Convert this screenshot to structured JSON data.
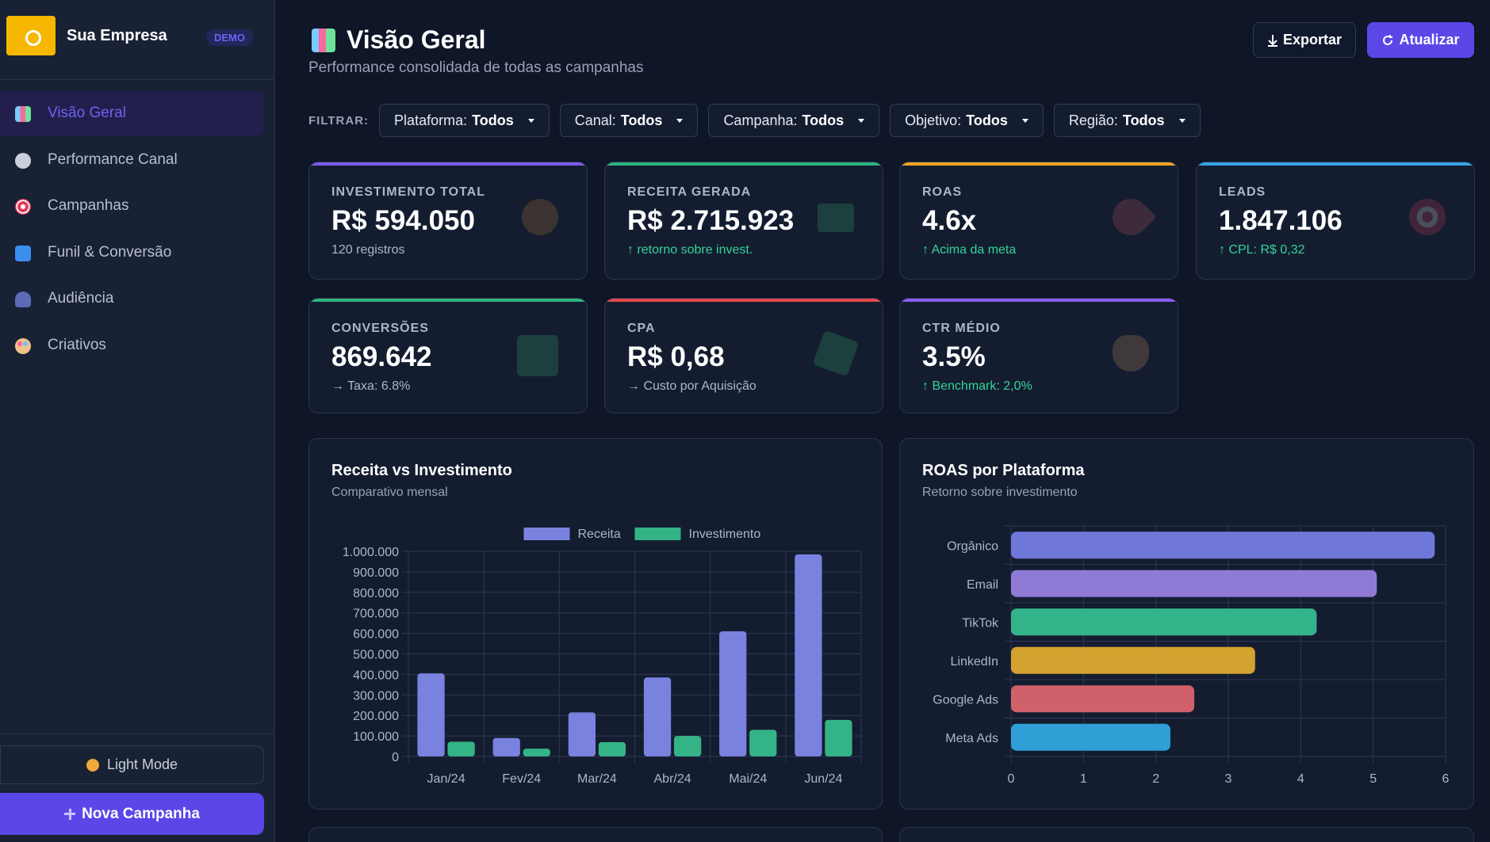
{
  "sidebar": {
    "brand": "Sua Empresa",
    "badge": "DEMO",
    "nav": [
      "Visão Geral",
      "Performance Canal",
      "Campanhas",
      "Funil & Conversão",
      "Audiência",
      "Criativos"
    ],
    "light_mode": "Light Mode",
    "new_campaign": "Nova Campanha"
  },
  "header": {
    "title": "Visão Geral",
    "subtitle": "Performance consolidada de todas as campanhas",
    "export": "Exportar",
    "refresh": "Atualizar"
  },
  "filters": {
    "label": "FILTRAR:",
    "items": [
      {
        "name": "Plataforma:",
        "value": "Todos"
      },
      {
        "name": "Canal:",
        "value": "Todos"
      },
      {
        "name": "Campanha:",
        "value": "Todos"
      },
      {
        "name": "Objetivo:",
        "value": "Todos"
      },
      {
        "name": "Região:",
        "value": "Todos"
      }
    ]
  },
  "kpis": [
    {
      "label": "INVESTIMENTO TOTAL",
      "value": "R$ 594.050",
      "note": "120 registros"
    },
    {
      "label": "RECEITA GERADA",
      "value": "R$ 2.715.923",
      "note": "↑ retorno sobre invest."
    },
    {
      "label": "ROAS",
      "value": "4.6x",
      "note": "↑ Acima da meta"
    },
    {
      "label": "LEADS",
      "value": "1.847.106",
      "note": "↑ CPL: R$ 0,32"
    },
    {
      "label": "CONVERSÕES",
      "value": "869.642",
      "note": "→ Taxa: 6.8%"
    },
    {
      "label": "CPA",
      "value": "R$ 0,68",
      "note": "→ Custo por Aquisição"
    },
    {
      "label": "CTR MÉDIO",
      "value": "3.5%",
      "note": "↑ Benchmark: 2,0%"
    }
  ],
  "chart_data": [
    {
      "type": "bar",
      "title": "Receita vs Investimento",
      "subtitle": "Comparativo mensal",
      "categories": [
        "Jan/24",
        "Fev/24",
        "Mar/24",
        "Abr/24",
        "Mai/24",
        "Jun/24"
      ],
      "series": [
        {
          "name": "Receita",
          "color": "#7a82df",
          "values": [
            405000,
            90000,
            215000,
            385000,
            610000,
            985000
          ]
        },
        {
          "name": "Investimento",
          "color": "#34b386",
          "values": [
            72000,
            38000,
            70000,
            100000,
            130000,
            178000
          ]
        }
      ],
      "ylim": [
        0,
        1000000
      ],
      "yticks": [
        0,
        {
          "value": 100000,
          "label": "100.000"
        },
        {
          "value": 200000,
          "label": "200.000"
        },
        {
          "value": 300000,
          "label": "300.000"
        },
        {
          "value": 400000,
          "label": "400.000"
        },
        {
          "value": 500000,
          "label": "500.000"
        },
        {
          "value": 600000,
          "label": "600.000"
        },
        {
          "value": 700000,
          "label": "700.000"
        },
        {
          "value": 800000,
          "label": "800.000"
        },
        {
          "value": 900000,
          "label": "900.000"
        },
        {
          "value": 1000000,
          "label": "1.000.000"
        }
      ],
      "grid": true,
      "legend": "top"
    },
    {
      "type": "barh",
      "title": "ROAS por Plataforma",
      "subtitle": "Retorno sobre investimento",
      "categories": [
        "Orgânico",
        "Email",
        "TikTok",
        "LinkedIn",
        "Google Ads",
        "Meta Ads"
      ],
      "values": [
        5.85,
        5.05,
        4.22,
        3.37,
        2.53,
        2.2
      ],
      "colors": [
        "#6f78d9",
        "#8f7ad6",
        "#33b389",
        "#d4a22e",
        "#d0616a",
        "#2f9fd6"
      ],
      "xlim": [
        0,
        6
      ],
      "xticks": [
        0,
        1,
        2,
        3,
        4,
        5,
        6
      ],
      "grid": true
    }
  ]
}
